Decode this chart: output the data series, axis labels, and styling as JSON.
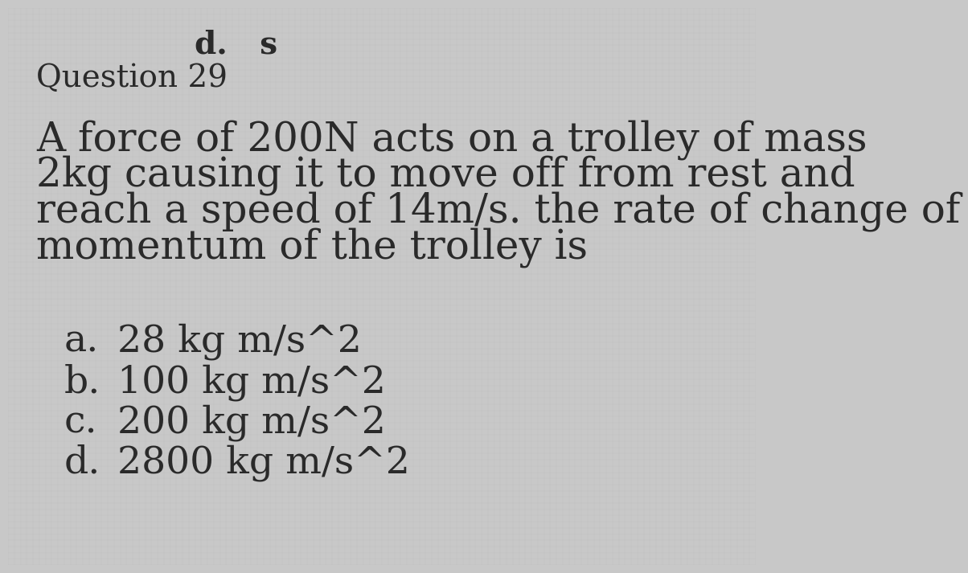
{
  "background_color": "#c8c8c8",
  "header_text": "d.   s",
  "question_label": "Question 29",
  "question_lines": [
    "A force of 200N acts on a trolley of mass",
    "2kg causing it to move off from rest and",
    "reach a speed of 14m/s. the rate of change of",
    "momentum of the trolley is"
  ],
  "option_labels": [
    "a.",
    "b.",
    "c.",
    "d."
  ],
  "option_values": [
    "28 kg m/s^2",
    "100 kg m/s^2",
    "200 kg m/s^2",
    "2800 kg m/s^2"
  ],
  "text_color": "#2a2a2a",
  "header_fontsize": 28,
  "question_label_fontsize": 28,
  "question_body_fontsize": 36,
  "options_fontsize": 34,
  "font_family": "DejaVu Serif"
}
